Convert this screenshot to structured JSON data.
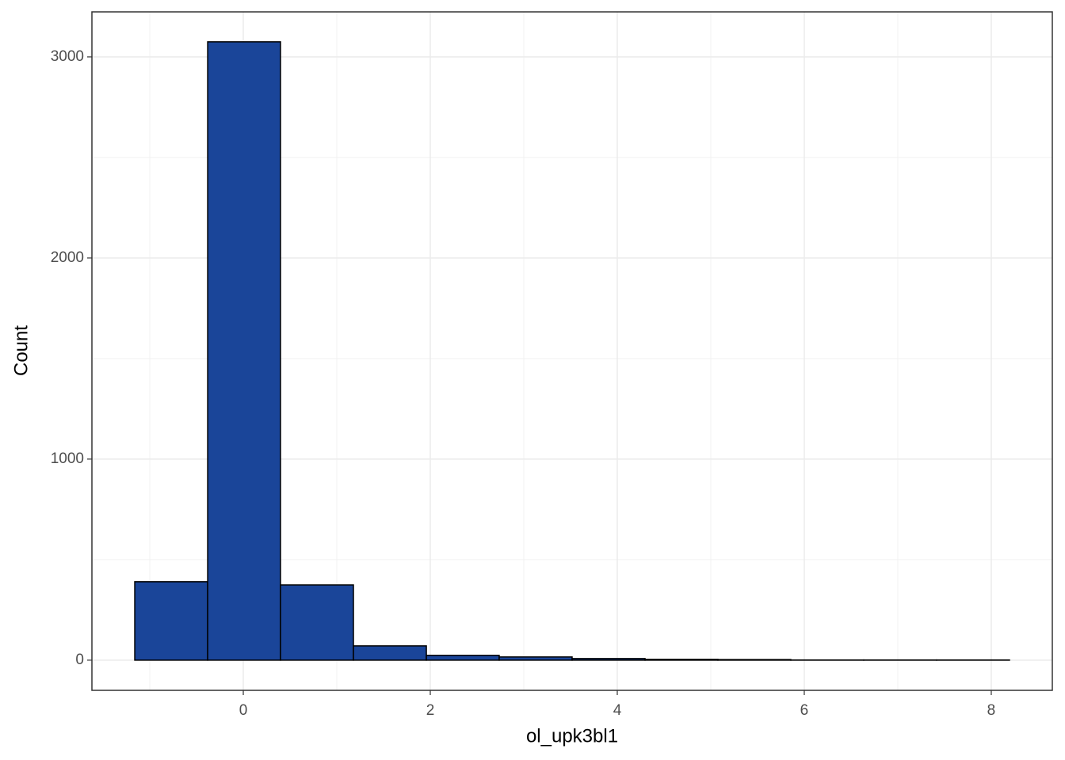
{
  "chart_data": {
    "type": "histogram",
    "x_label": "ol_upk3bl1",
    "y_label": "Count",
    "bins": [
      -1.161,
      -0.381,
      0.398,
      1.178,
      1.958,
      2.737,
      3.517,
      4.297,
      5.076,
      5.856,
      6.636,
      7.415,
      8.195
    ],
    "values": [
      390,
      3075,
      374,
      71,
      24,
      16,
      8,
      4,
      3,
      1,
      1,
      1
    ],
    "color": "#1a4599",
    "edge_color": "#000000",
    "xlim": [
      -1.619,
      8.653
    ],
    "ylim": [
      -150,
      3224
    ],
    "xticks": [
      0,
      2,
      4,
      6,
      8
    ],
    "yticks": [
      0,
      1000,
      2000,
      3000
    ],
    "x_minor_ticks": [
      -1,
      1,
      3,
      5,
      7
    ],
    "y_minor_ticks": [
      500,
      1500,
      2500
    ],
    "grid": true
  }
}
